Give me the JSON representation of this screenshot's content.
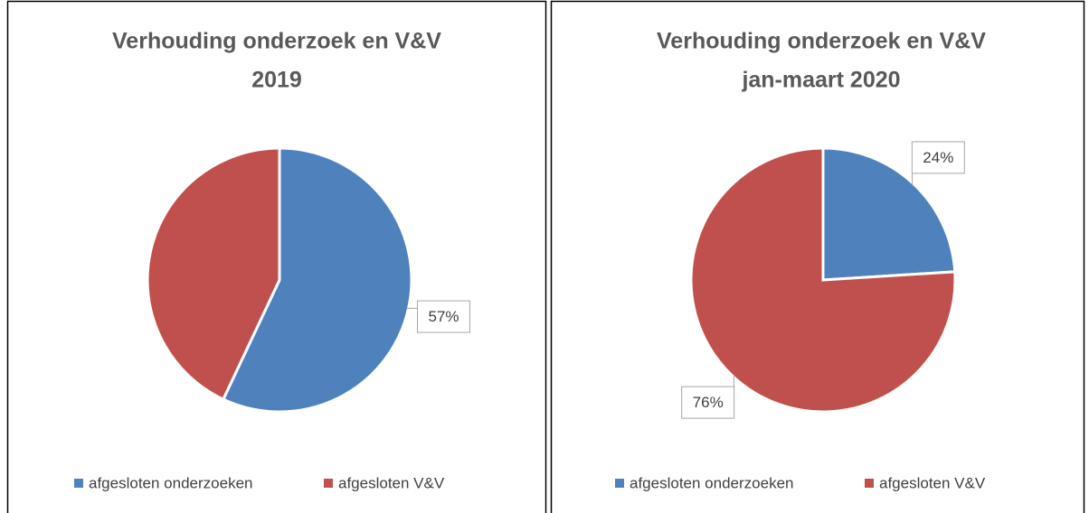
{
  "chart_data": [
    {
      "type": "pie",
      "title": [
        "Verhouding onderzoek en V&V",
        "2019"
      ],
      "categories": [
        "afgesloten onderzoeken",
        "afgesloten V&V"
      ],
      "values": [
        57,
        43
      ],
      "value_labels": [
        "57%",
        null
      ],
      "colors": [
        "#4f81bd",
        "#c0504d"
      ],
      "legend": "bottom"
    },
    {
      "type": "pie",
      "title": [
        "Verhouding onderzoek en V&V",
        "jan-maart 2020"
      ],
      "categories": [
        "afgesloten onderzoeken",
        "afgesloten V&V"
      ],
      "values": [
        24,
        76
      ],
      "value_labels": [
        "24%",
        "76%"
      ],
      "colors": [
        "#4f81bd",
        "#c0504d"
      ],
      "legend": "bottom"
    }
  ]
}
